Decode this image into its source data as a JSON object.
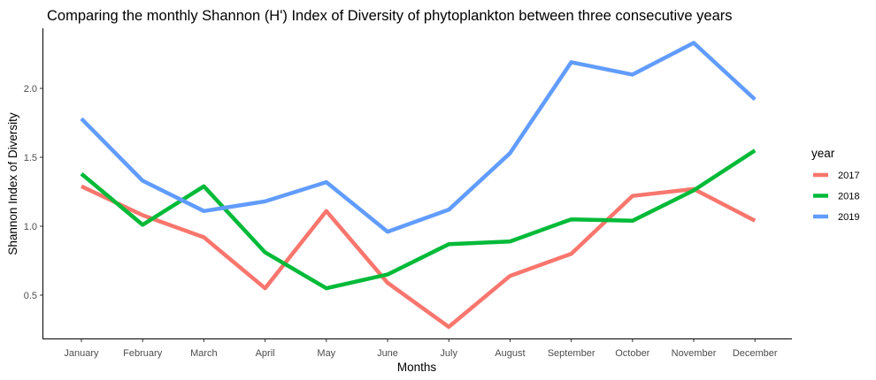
{
  "chart_data": {
    "type": "line",
    "title": "Comparing the monthly Shannon (H') Index of Diversity of phytoplankton between three consecutive years",
    "xlabel": "Months",
    "ylabel": "Shannon Index of Diversity",
    "categories": [
      "January",
      "February",
      "March",
      "April",
      "May",
      "June",
      "July",
      "August",
      "September",
      "October",
      "November",
      "December"
    ],
    "ylim": [
      0.2,
      2.43
    ],
    "yticks": [
      "0.5",
      "1.0",
      "1.5",
      "2.0"
    ],
    "grid": false,
    "legend_title": "year",
    "legend_position": "right",
    "series": [
      {
        "name": "2017",
        "color": "#F8766D",
        "values": [
          1.29,
          1.08,
          0.92,
          0.55,
          1.11,
          0.59,
          0.27,
          0.64,
          0.8,
          1.22,
          1.27,
          1.04
        ]
      },
      {
        "name": "2018",
        "color": "#00BA38",
        "values": [
          1.38,
          1.01,
          1.29,
          0.81,
          0.55,
          0.65,
          0.87,
          0.89,
          1.05,
          1.04,
          1.26,
          1.55
        ]
      },
      {
        "name": "2019",
        "color": "#619CFF",
        "values": [
          1.78,
          1.33,
          1.11,
          1.18,
          1.32,
          0.96,
          1.12,
          1.53,
          2.19,
          2.1,
          2.33,
          1.92
        ]
      }
    ]
  }
}
